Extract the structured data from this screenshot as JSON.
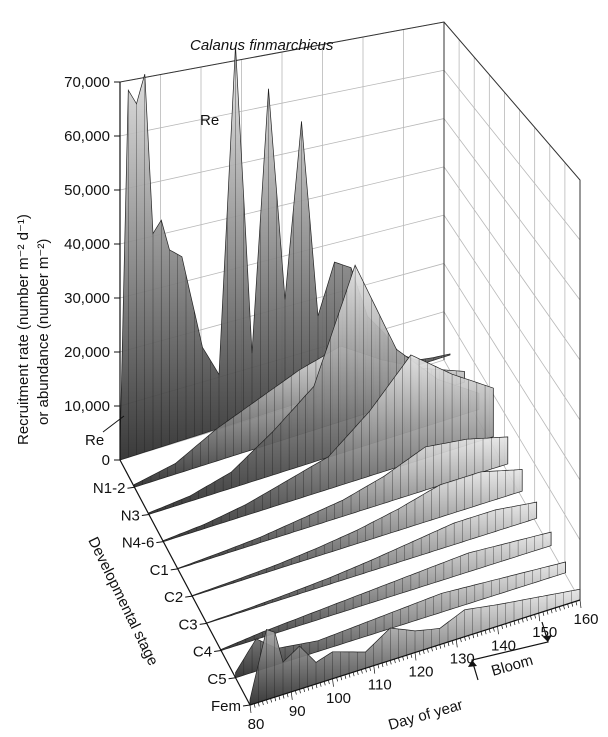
{
  "chart_data": {
    "type": "area",
    "title": "Calanus finmarchicus",
    "ylabel_line1": "Recruitment rate (number m⁻² d⁻¹)",
    "ylabel_line2": "or abundance (number m⁻²)",
    "zlabel": "Developmental stage",
    "xlabel": "Day of year",
    "bloom_label": "Bloom",
    "re_label": "Re",
    "y_ticks": [
      "70,000",
      "60,000",
      "50,000",
      "40,000",
      "30,000",
      "20,000",
      "10,000",
      "0"
    ],
    "y_tick_values": [
      70000,
      60000,
      50000,
      40000,
      30000,
      20000,
      10000,
      0
    ],
    "ylim": [
      0,
      70000
    ],
    "x_ticks": [
      "80",
      "90",
      "100",
      "110",
      "120",
      "130",
      "140",
      "150",
      "160"
    ],
    "x_tick_values": [
      80,
      90,
      100,
      110,
      120,
      130,
      140,
      150,
      160
    ],
    "xlim": [
      80,
      160
    ],
    "bloom_range": [
      130,
      150
    ],
    "stages": [
      "Re",
      "N1-2",
      "N3",
      "N4-6",
      "C1",
      "C2",
      "C3",
      "C4",
      "C5",
      "Fem"
    ],
    "series": [
      {
        "name": "Re",
        "x": [
          80,
          82,
          84,
          86,
          88,
          90,
          92,
          95,
          100,
          104,
          108,
          112,
          116,
          120,
          124,
          128,
          132,
          136,
          140,
          144,
          148,
          152,
          156,
          160
        ],
        "values": [
          2000,
          68000,
          65000,
          70000,
          40000,
          42000,
          36000,
          34000,
          16000,
          10000,
          70000,
          12000,
          60000,
          20000,
          52000,
          15000,
          24000,
          22000,
          12000,
          8000,
          3000,
          1000,
          500,
          200
        ]
      },
      {
        "name": "N1-2",
        "x": [
          80,
          90,
          100,
          110,
          120,
          130,
          140,
          150,
          160
        ],
        "values": [
          500,
          2000,
          6000,
          9000,
          12000,
          14000,
          9000,
          5000,
          2000
        ]
      },
      {
        "name": "N3",
        "x": [
          80,
          90,
          100,
          110,
          120,
          130,
          140,
          150,
          160
        ],
        "values": [
          300,
          1000,
          3000,
          8000,
          14000,
          34000,
          16000,
          8000,
          3000
        ]
      },
      {
        "name": "N4-6",
        "x": [
          80,
          90,
          100,
          110,
          120,
          130,
          140,
          150,
          160
        ],
        "values": [
          200,
          800,
          2000,
          4000,
          6000,
          12000,
          20000,
          14000,
          9000
        ]
      },
      {
        "name": "C1",
        "x": [
          80,
          90,
          100,
          110,
          120,
          130,
          140,
          150,
          160
        ],
        "values": [
          100,
          500,
          1000,
          2000,
          3000,
          5000,
          8000,
          7000,
          5000
        ]
      },
      {
        "name": "C2",
        "x": [
          80,
          90,
          100,
          110,
          120,
          130,
          140,
          150,
          160
        ],
        "values": [
          100,
          400,
          800,
          1500,
          2500,
          4000,
          6000,
          6000,
          4000
        ]
      },
      {
        "name": "C3",
        "x": [
          80,
          90,
          100,
          110,
          120,
          130,
          140,
          150,
          160
        ],
        "values": [
          100,
          300,
          700,
          1200,
          2000,
          3000,
          4000,
          4000,
          3000
        ]
      },
      {
        "name": "C4",
        "x": [
          80,
          90,
          100,
          110,
          120,
          130,
          140,
          150,
          160
        ],
        "values": [
          200,
          1000,
          1500,
          2000,
          2500,
          3000,
          3500,
          3000,
          2500
        ]
      },
      {
        "name": "C5",
        "x": [
          80,
          85,
          90,
          100,
          110,
          120,
          130,
          140,
          150,
          160
        ],
        "values": [
          1000,
          6000,
          3000,
          2000,
          2500,
          3000,
          3500,
          3000,
          2500,
          2000
        ]
      },
      {
        "name": "Fem",
        "x": [
          80,
          84,
          86,
          88,
          92,
          96,
          100,
          108,
          114,
          120,
          126,
          132,
          140,
          150,
          160
        ],
        "values": [
          1000,
          13000,
          12000,
          6000,
          8000,
          4000,
          5000,
          3000,
          6000,
          4000,
          3000,
          5000,
          4000,
          3000,
          2000
        ]
      }
    ],
    "grid": true,
    "legend": "none"
  }
}
